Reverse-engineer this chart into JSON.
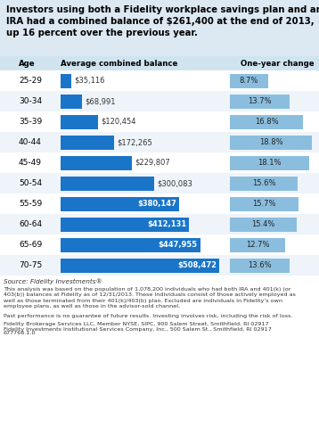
{
  "title_line1": "Investors using both a Fidelity workplace savings plan and an",
  "title_line2": "IRA had a combined balance of $261,400 at the end of 2013,",
  "title_line3": "up 16 percent over the previous year.",
  "col_age": "Age",
  "col_balance": "Average combined balance",
  "col_change": "One-year change",
  "ages": [
    "25-29",
    "30-34",
    "35-39",
    "40-44",
    "45-49",
    "50-54",
    "55-59",
    "60-64",
    "65-69",
    "70-75"
  ],
  "balances": [
    35116,
    68991,
    120454,
    172265,
    229807,
    300083,
    380147,
    412131,
    447955,
    508472
  ],
  "balance_labels": [
    "$35,116",
    "$68,991",
    "$120,454",
    "$172,265",
    "$229,807",
    "$300,083",
    "$380,147",
    "$412,131",
    "$447,955",
    "$508,472"
  ],
  "changes": [
    8.7,
    13.7,
    16.8,
    18.8,
    18.1,
    15.6,
    15.7,
    15.4,
    12.7,
    13.6
  ],
  "change_labels": [
    "8.7%",
    "13.7%",
    "16.8%",
    "18.8%",
    "18.1%",
    "15.6%",
    "15.7%",
    "15.4%",
    "12.7%",
    "13.6%"
  ],
  "bar_color_dark": "#1a75c9",
  "bar_color_light": "#8bbede",
  "bg_header": "#d0e4f0",
  "row_bg_even": "#ffffff",
  "row_bg_odd": "#eef4fa",
  "title_bg": "#dce8f2",
  "max_balance": 508472,
  "max_change": 18.8,
  "source_text": "Source: Fidelity Investments®",
  "footnote1": "This analysis was based on the population of 1,078,200 individuals who had both IRA and 401(k) (or\n403(b)) balances at Fidelity as of 12/31/2013. These individuals consist of those actively employed as\nwell as those terminated from their 401(k)/403(b) plan. Excluded are individuals in Fidelity’s own\nemployee plans, as well as those in the advisor-sold channel.",
  "footnote2": "Past performance is no guarantee of future results. Investing involves risk, including the risk of loss.",
  "footnote3": "Fidelity Brokerage Services LLC, Member NYSE, SIPC, 900 Salem Street, Smithfield, RI 02917\nFidelity Investments Institutional Services Company, Inc., 500 Salem St., Smithfield, RI 02917",
  "footnote4": "677766.1.0",
  "label_inside_threshold": 350000
}
